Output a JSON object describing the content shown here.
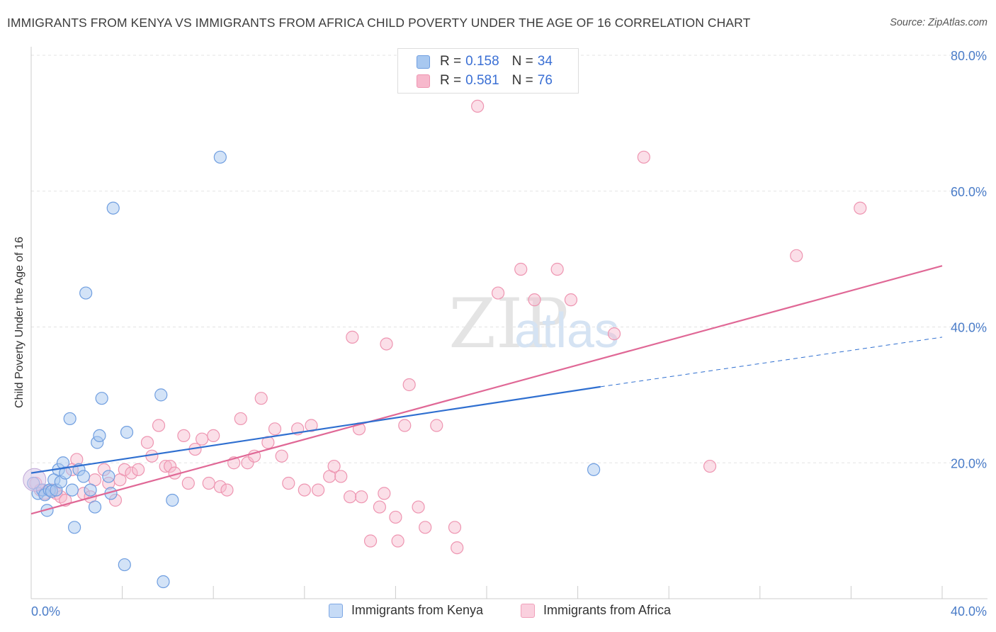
{
  "title": "IMMIGRANTS FROM KENYA VS IMMIGRANTS FROM AFRICA CHILD POVERTY UNDER THE AGE OF 16 CORRELATION CHART",
  "source": "Source: ZipAtlas.com",
  "watermark": "ZIPatlas",
  "legend": {
    "rows": [
      {
        "r_label": "R = ",
        "r_value": "0.158",
        "n_label": "N = ",
        "n_value": "34"
      },
      {
        "r_label": "R = ",
        "r_value": "0.581",
        "n_label": "N = ",
        "n_value": "76"
      }
    ]
  },
  "bottom_legend": [
    "Immigrants from Kenya",
    "Immigrants from Africa"
  ],
  "colors": {
    "kenya_fill": "#a8c8f0",
    "kenya_stroke": "#6f9ee0",
    "kenya_line": "#2f6fd0",
    "africa_fill": "#f7b8cc",
    "africa_stroke": "#ee95b1",
    "africa_line": "#e06896",
    "tick_label": "#4a7cc8"
  },
  "chart_data": {
    "type": "scatter",
    "title": "IMMIGRANTS FROM KENYA VS IMMIGRANTS FROM AFRICA CHILD POVERTY UNDER THE AGE OF 16 CORRELATION CHART",
    "xlabel": "",
    "ylabel": "Child Poverty Under the Age of 16",
    "xlim": [
      0,
      40
    ],
    "ylim": [
      0,
      80
    ],
    "x_tick_labels": [
      "0.0%",
      "40.0%"
    ],
    "y_tick_labels": [
      "20.0%",
      "40.0%",
      "60.0%",
      "80.0%"
    ],
    "y_ticks": [
      20,
      40,
      60,
      80
    ],
    "grid": true,
    "legend_placement": "top-center",
    "series": [
      {
        "name": "Immigrants from Kenya",
        "R": 0.158,
        "N": 34,
        "trend": {
          "x0": 0,
          "y0": 18.5,
          "x1": 25,
          "y1": 31.2,
          "dashed_to_x": 40,
          "dashed_to_y": 38.5
        },
        "points": [
          [
            0.1,
            17.0
          ],
          [
            0.3,
            15.5
          ],
          [
            0.5,
            16.0
          ],
          [
            0.6,
            15.3
          ],
          [
            0.7,
            13.0
          ],
          [
            0.8,
            16.0
          ],
          [
            0.9,
            15.8
          ],
          [
            1.0,
            17.5
          ],
          [
            1.1,
            16.0
          ],
          [
            1.2,
            19.0
          ],
          [
            1.3,
            17.2
          ],
          [
            1.4,
            20.0
          ],
          [
            1.5,
            18.5
          ],
          [
            1.7,
            26.5
          ],
          [
            1.8,
            16.0
          ],
          [
            1.9,
            10.5
          ],
          [
            2.1,
            19.0
          ],
          [
            2.3,
            18.0
          ],
          [
            2.4,
            45.0
          ],
          [
            2.6,
            16.0
          ],
          [
            2.8,
            13.5
          ],
          [
            2.9,
            23.0
          ],
          [
            3.0,
            24.0
          ],
          [
            3.1,
            29.5
          ],
          [
            3.4,
            18.0
          ],
          [
            3.5,
            15.5
          ],
          [
            3.6,
            57.5
          ],
          [
            4.2,
            24.5
          ],
          [
            4.1,
            5.0
          ],
          [
            5.7,
            30.0
          ],
          [
            5.8,
            2.5
          ],
          [
            6.2,
            14.5
          ],
          [
            8.3,
            65.0
          ],
          [
            24.7,
            19.0
          ]
        ]
      },
      {
        "name": "Immigrants from Africa",
        "R": 0.581,
        "N": 76,
        "trend": {
          "x0": 0,
          "y0": 12.5,
          "x1": 40,
          "y1": 49.0
        },
        "points": [
          [
            0.2,
            17.0
          ],
          [
            0.4,
            16.0
          ],
          [
            0.6,
            15.5
          ],
          [
            0.9,
            16.0
          ],
          [
            1.1,
            15.5
          ],
          [
            1.3,
            15.0
          ],
          [
            1.5,
            14.5
          ],
          [
            1.8,
            19.0
          ],
          [
            2.0,
            20.5
          ],
          [
            2.3,
            15.5
          ],
          [
            2.6,
            15.0
          ],
          [
            2.8,
            17.5
          ],
          [
            3.2,
            19.0
          ],
          [
            3.4,
            17.0
          ],
          [
            3.7,
            14.5
          ],
          [
            3.9,
            17.5
          ],
          [
            4.1,
            19.0
          ],
          [
            4.4,
            18.5
          ],
          [
            4.7,
            19.0
          ],
          [
            5.1,
            23.0
          ],
          [
            5.3,
            21.0
          ],
          [
            5.6,
            25.5
          ],
          [
            5.9,
            19.5
          ],
          [
            6.1,
            19.5
          ],
          [
            6.3,
            18.5
          ],
          [
            6.7,
            24.0
          ],
          [
            6.9,
            17.0
          ],
          [
            7.2,
            22.0
          ],
          [
            7.5,
            23.5
          ],
          [
            7.8,
            17.0
          ],
          [
            8.0,
            24.0
          ],
          [
            8.3,
            16.5
          ],
          [
            8.6,
            16.0
          ],
          [
            8.9,
            20.0
          ],
          [
            9.2,
            26.5
          ],
          [
            9.5,
            20.0
          ],
          [
            9.8,
            21.0
          ],
          [
            10.1,
            29.5
          ],
          [
            10.4,
            23.0
          ],
          [
            10.7,
            25.0
          ],
          [
            11.0,
            21.0
          ],
          [
            11.3,
            17.0
          ],
          [
            11.7,
            25.0
          ],
          [
            12.0,
            16.0
          ],
          [
            12.3,
            25.5
          ],
          [
            12.6,
            16.0
          ],
          [
            13.1,
            18.0
          ],
          [
            13.3,
            19.5
          ],
          [
            13.6,
            18.0
          ],
          [
            14.0,
            15.0
          ],
          [
            14.1,
            38.5
          ],
          [
            14.4,
            25.0
          ],
          [
            14.5,
            15.0
          ],
          [
            14.9,
            8.5
          ],
          [
            15.3,
            13.5
          ],
          [
            15.5,
            15.5
          ],
          [
            15.6,
            37.5
          ],
          [
            16.0,
            12.0
          ],
          [
            16.1,
            8.5
          ],
          [
            16.4,
            25.5
          ],
          [
            16.6,
            31.5
          ],
          [
            17.0,
            13.5
          ],
          [
            17.3,
            10.5
          ],
          [
            17.8,
            25.5
          ],
          [
            18.6,
            10.5
          ],
          [
            18.7,
            7.5
          ],
          [
            19.6,
            72.5
          ],
          [
            20.5,
            45.0
          ],
          [
            21.5,
            48.5
          ],
          [
            22.1,
            44.0
          ],
          [
            23.1,
            48.5
          ],
          [
            23.7,
            44.0
          ],
          [
            25.6,
            39.0
          ],
          [
            26.9,
            65.0
          ],
          [
            29.8,
            19.5
          ],
          [
            33.6,
            50.5
          ],
          [
            36.4,
            57.5
          ]
        ]
      }
    ]
  }
}
